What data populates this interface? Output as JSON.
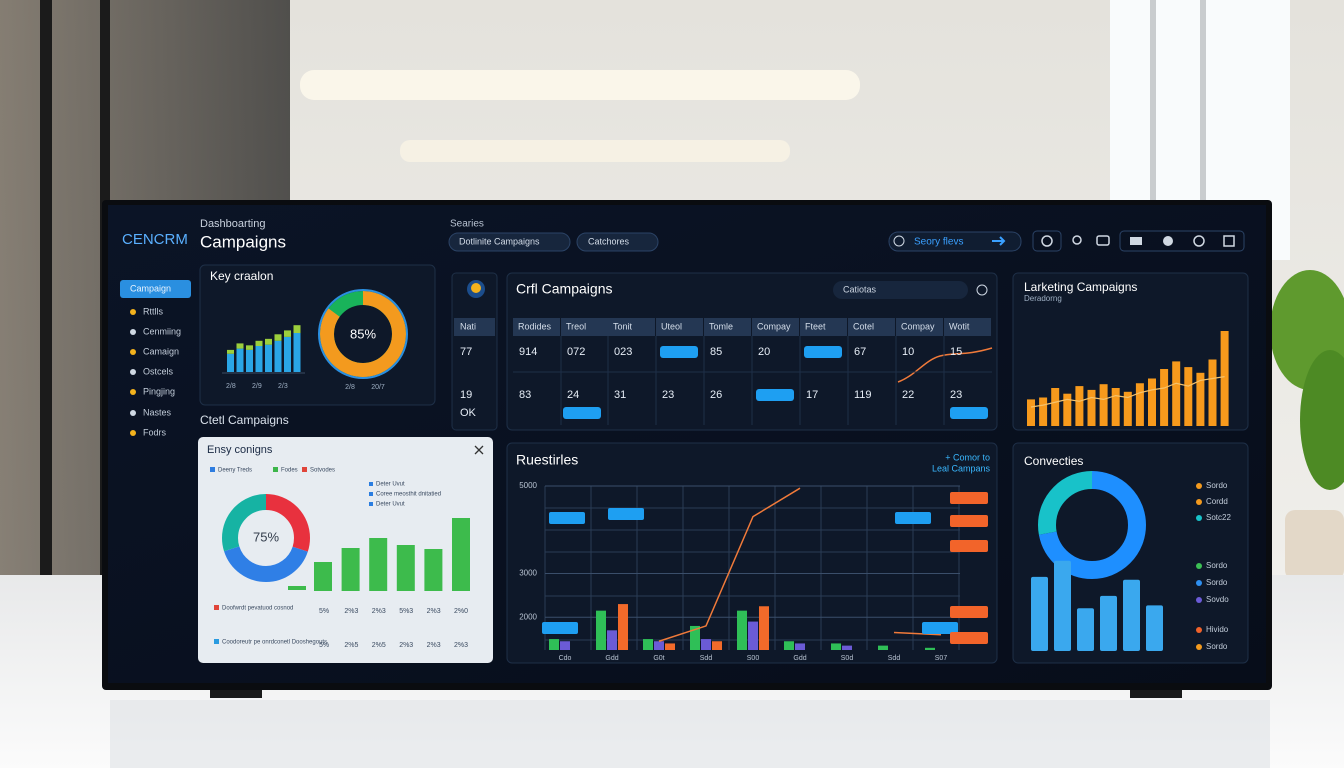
{
  "header": {
    "logo": "CENCRM",
    "subtitle": "Dashboarting",
    "title": "Campaigns",
    "filter_label": "Searies",
    "pills": [
      "Dotlinite Campaigns",
      "Catchores"
    ],
    "search": "Seory flevs"
  },
  "sidebar": {
    "items": [
      "Campaign",
      "Rttlls",
      "Cenmiing",
      "Camaign",
      "Ostcels",
      "Pingjing",
      "Nastes",
      "Fodrs"
    ]
  },
  "key_creation": {
    "title": "Key craalon",
    "ylim": [
      0,
      100
    ],
    "series": [
      {
        "color": "#2aa6e6",
        "values": [
          28,
          36,
          34,
          40,
          42,
          48,
          54,
          60
        ]
      },
      {
        "color": "#9ccf3c",
        "values": [
          6,
          8,
          7,
          8,
          9,
          10,
          10,
          12
        ]
      }
    ],
    "axis_labels": [
      "2/8",
      "2/9",
      "2/3"
    ],
    "donut": {
      "value": 85,
      "label": "85%",
      "color": "#f39a1e",
      "rest_color": "#19b35a"
    },
    "donut_labels": [
      "2/8",
      "20/7"
    ]
  },
  "section_label": "Ctetl Campaigns",
  "easy_panel": {
    "title": "Ensy conigns",
    "legend": [
      {
        "label": "Deeny Treds",
        "color": "#2e7de0"
      },
      {
        "label": "Fodes",
        "color": "#3cb54a"
      },
      {
        "label": "Sotvodes",
        "color": "#e0453a"
      }
    ],
    "notes": [
      "Deter Uvut",
      "Coree meosthit dnitatied",
      "Deter Uvut"
    ],
    "donut": {
      "label": "75%",
      "segments": [
        {
          "value": 30,
          "color": "#e8313e"
        },
        {
          "value": 40,
          "color": "#2f7fe6"
        },
        {
          "value": 30,
          "color": "#16b3a3"
        }
      ]
    },
    "ylim": [
      0,
      100
    ],
    "bars": [
      29,
      43,
      53,
      46,
      42,
      73
    ],
    "bar_color": "#3dbb4c",
    "rows": [
      {
        "label": "Doofwrdt pevatuod cosnod",
        "color": "#e0453a",
        "values": [
          "5%",
          "2%3",
          "2%3",
          "5%3",
          "2%3",
          "2%0"
        ]
      },
      {
        "label": "Coodoreutr pe onrdconetl Dooshegouts",
        "color": "#2a9be0",
        "values": [
          "5%",
          "2%5",
          "2%5",
          "2%3",
          "2%3",
          "2%3"
        ]
      }
    ]
  },
  "table": {
    "title": "Crfl Campaigns",
    "search": "Catiotas",
    "side_header": "Nati",
    "side_values": [
      "77",
      "19",
      "OK"
    ],
    "headers": [
      "Rodides",
      "Treol",
      "Tonit",
      "Uteol",
      "Tomle",
      "Compay",
      "Fteet",
      "Cotel",
      "Compay",
      "Wotit"
    ],
    "rows": [
      [
        "914",
        "072",
        "023",
        null,
        "85",
        "20",
        null,
        "67",
        "10",
        "15"
      ],
      [
        "83",
        "24",
        "31",
        "23",
        "26",
        null,
        "17",
        "119",
        "22",
        "23"
      ]
    ]
  },
  "results_chart": {
    "title": "Ruestirles",
    "link": [
      "+ Comor to",
      "Leal Campans"
    ],
    "ylim": [
      1250,
      5000
    ],
    "yticks": [
      2000,
      3000,
      5000
    ],
    "categories": [
      "Cdo",
      "Gdd",
      "G0t",
      "Sdd",
      "S00",
      "Gdd",
      "S0d",
      "Sdd",
      "S07"
    ],
    "series": [
      {
        "color": "#2fbf57",
        "values": [
          1500,
          2150,
          1500,
          1800,
          2150,
          1450,
          1400,
          1350,
          1300
        ]
      },
      {
        "color": "#6b5bd6",
        "values": [
          1450,
          1700,
          1450,
          1500,
          1900,
          1400,
          1350,
          null,
          null
        ]
      },
      {
        "color": "#f26a2a",
        "values": [
          null,
          2300,
          1400,
          1450,
          2250,
          null,
          null,
          null,
          null
        ]
      }
    ],
    "line": {
      "color": "#f07a3a",
      "values": [
        null,
        null,
        1450,
        1800,
        4300,
        4950,
        null,
        1650,
        1600
      ]
    }
  },
  "marketing": {
    "title": "Larketing Campaigns",
    "subtitle": "Deradorng",
    "ylim": [
      0,
      100
    ],
    "color": "#f79a1c",
    "values": [
      28,
      30,
      40,
      34,
      42,
      38,
      44,
      40,
      36,
      45,
      50,
      60,
      68,
      62,
      56,
      70,
      100
    ],
    "line": {
      "color": "#f6c26a",
      "values": [
        20,
        22,
        25,
        28,
        26,
        30,
        28,
        32,
        30,
        35,
        38,
        40,
        45,
        42,
        48,
        50,
        52
      ]
    }
  },
  "conversions": {
    "title": "Convecties",
    "donut": [
      {
        "value": 72,
        "color": "#1e8fff"
      },
      {
        "value": 28,
        "color": "#18c2c9"
      }
    ],
    "ylim": [
      0,
      100
    ],
    "bars": [
      78,
      95,
      45,
      58,
      75,
      48
    ],
    "bar_color": "#3aa8ee",
    "legend": [
      {
        "label": "Sordo",
        "color": "#f39a1e"
      },
      {
        "label": "Cordd",
        "color": "#f39a1e"
      },
      {
        "label": "Sotc22",
        "color": "#18c2c9"
      },
      {
        "label": "Sordo",
        "color": "#3cbf55"
      },
      {
        "label": "Sordo",
        "color": "#2e8ff0"
      },
      {
        "label": "Sovdo",
        "color": "#6b5bd6"
      },
      {
        "label": "Hivido",
        "color": "#f0622a"
      },
      {
        "label": "Sordo",
        "color": "#f39a1e"
      }
    ]
  }
}
